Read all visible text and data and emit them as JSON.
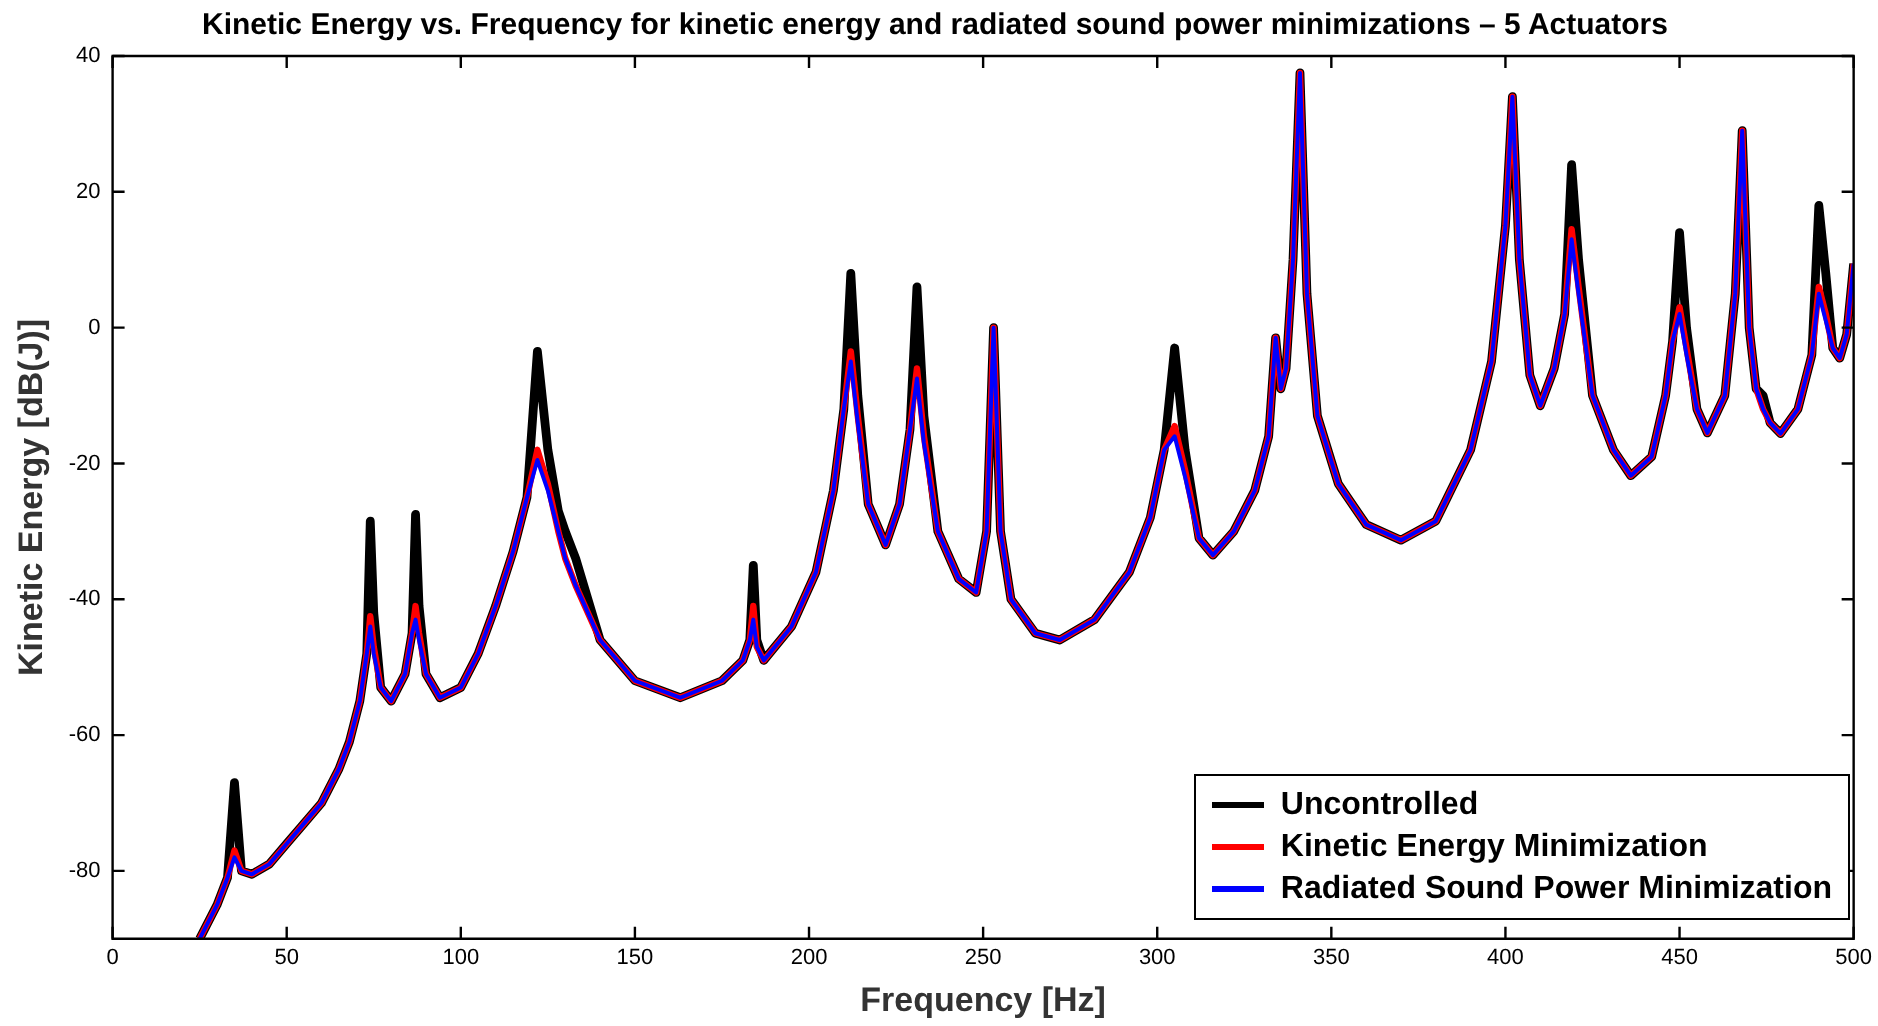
{
  "chart_data": {
    "type": "line",
    "title": "Kinetic Energy vs. Frequency for kinetic energy and radiated sound power minimizations – 5 Actuators",
    "xlabel": "Frequency [Hz]",
    "ylabel": "Kinetic Energy [dB(J)]",
    "x": [
      25,
      30,
      33,
      35,
      37,
      40,
      45,
      50,
      55,
      60,
      65,
      68,
      71,
      73,
      74,
      75,
      77,
      80,
      84,
      86,
      87,
      88,
      90,
      94,
      100,
      105,
      110,
      115,
      119,
      122,
      125,
      128,
      130,
      133,
      140,
      150,
      163,
      175,
      181,
      183,
      184,
      185,
      187,
      195,
      202,
      207,
      210,
      212,
      214,
      217,
      222,
      226,
      229,
      231,
      233,
      237,
      243,
      248,
      251,
      253,
      255,
      258,
      265,
      272,
      282,
      292,
      298,
      302,
      305,
      308,
      312,
      316,
      322,
      328,
      332,
      334,
      335.5,
      337,
      339,
      341,
      343,
      346,
      352,
      360,
      370,
      380,
      390,
      396,
      400,
      402,
      404,
      407,
      410,
      414,
      417,
      419,
      421,
      425,
      431,
      436,
      442,
      446,
      448,
      450,
      452,
      455,
      458,
      463,
      466,
      468,
      470,
      472,
      474,
      476,
      479,
      484,
      488,
      490,
      492,
      494,
      496,
      498,
      500
    ],
    "xlim": [
      0,
      500
    ],
    "xticks": [
      0,
      50,
      100,
      150,
      200,
      250,
      300,
      350,
      400,
      450,
      500
    ],
    "ylim": [
      -90,
      40
    ],
    "yticks": [
      -80,
      -60,
      -40,
      -20,
      0,
      20,
      40
    ],
    "grid": false,
    "legend": "bottom right",
    "marker": "none",
    "line_style": "solid",
    "series": [
      {
        "name": "Uncontrolled",
        "color": "#000000",
        "values": [
          -90,
          -85,
          -81,
          -67,
          -80,
          -80.5,
          -79,
          -76,
          -73,
          -70,
          -65,
          -61,
          -55,
          -48,
          -28.5,
          -42,
          -53,
          -55,
          -51,
          -45,
          -27.5,
          -41,
          -51,
          -54.5,
          -53,
          -48,
          -41,
          -33,
          -25,
          -3.5,
          -18,
          -27,
          -30,
          -34,
          -46,
          -52,
          -54.5,
          -52,
          -49,
          -46,
          -35,
          -46,
          -49,
          -44,
          -36,
          -24,
          -12,
          8,
          -10,
          -26,
          -32,
          -26,
          -15,
          6,
          -13,
          -30,
          -37,
          -39,
          -30,
          0,
          -30,
          -40,
          -45,
          -46,
          -43,
          -36,
          -28,
          -18,
          -3,
          -18,
          -31,
          -33.5,
          -30,
          -24,
          -16,
          -1.5,
          -9,
          -6,
          10,
          37.5,
          5,
          -13,
          -23,
          -29,
          -31.3,
          -28.5,
          -18,
          -5,
          15,
          34,
          10,
          -7,
          -11.5,
          -6,
          2,
          24,
          10,
          -10,
          -18,
          -21.8,
          -19,
          -10,
          -2,
          14,
          0,
          -12,
          -15.5,
          -10,
          5,
          29,
          0,
          -9,
          -10,
          -14,
          -15.6,
          -12,
          -4,
          18,
          8,
          -3,
          -4.5,
          -1,
          9.4
        ]
      },
      {
        "name": "Kinetic Energy Minimization",
        "color": "#ff0000",
        "values": [
          -90,
          -85,
          -81,
          -77,
          -80,
          -80.5,
          -79,
          -76,
          -73,
          -70,
          -65,
          -61,
          -55,
          -48,
          -42.5,
          -47,
          -53,
          -55,
          -51,
          -45,
          -41,
          -45,
          -51,
          -54.5,
          -53,
          -48,
          -41,
          -33,
          -25,
          -18,
          -23,
          -30,
          -34,
          -38,
          -46,
          -52,
          -54.5,
          -52,
          -49,
          -46,
          -41,
          -47,
          -49,
          -44,
          -36,
          -24,
          -12,
          -3.5,
          -13,
          -26,
          -32,
          -26,
          -15,
          -6,
          -16,
          -30,
          -37,
          -39,
          -30,
          0,
          -30,
          -40,
          -45,
          -46,
          -43,
          -36,
          -28,
          -18,
          -14.5,
          -21,
          -31,
          -33.5,
          -30,
          -24,
          -16,
          -1.5,
          -9,
          -6,
          10,
          37.5,
          5,
          -13,
          -23,
          -29,
          -31.3,
          -28.5,
          -18,
          -5,
          15,
          34,
          10,
          -7,
          -11.5,
          -6,
          2,
          14.5,
          6,
          -10,
          -18,
          -21.8,
          -19,
          -10,
          -2,
          3,
          -3,
          -12,
          -15.5,
          -10,
          5,
          29,
          0,
          -9,
          -12,
          -14,
          -15.6,
          -12,
          -4,
          6,
          2,
          -3,
          -4.5,
          -1,
          9.4
        ]
      },
      {
        "name": "Radiated Sound Power Minimization",
        "color": "#0000ff",
        "values": [
          -90,
          -85,
          -81,
          -78,
          -80,
          -80.5,
          -79,
          -76,
          -73,
          -70,
          -65,
          -61,
          -55,
          -48,
          -44,
          -48,
          -53,
          -55,
          -51,
          -45,
          -43,
          -46,
          -51,
          -54.5,
          -53,
          -48,
          -41,
          -33,
          -25,
          -19.5,
          -24,
          -30,
          -34,
          -38,
          -46,
          -52,
          -54.5,
          -52,
          -49,
          -46,
          -43,
          -47,
          -49,
          -44,
          -36,
          -24,
          -12,
          -5,
          -14,
          -26,
          -32,
          -26,
          -15,
          -7.5,
          -17,
          -30,
          -37,
          -39,
          -30,
          0,
          -30,
          -40,
          -45,
          -46,
          -43,
          -36,
          -28,
          -18,
          -16,
          -22,
          -31,
          -33.5,
          -30,
          -24,
          -16,
          -1.5,
          -9,
          -6,
          10,
          37.5,
          5,
          -13,
          -23,
          -29,
          -31.3,
          -28.5,
          -18,
          -5,
          15,
          34,
          10,
          -7,
          -11.5,
          -6,
          2,
          13,
          5,
          -10,
          -18,
          -21.8,
          -19,
          -10,
          -2,
          2,
          -4,
          -12,
          -15.5,
          -10,
          5,
          29,
          0,
          -9,
          -12,
          -14,
          -15.6,
          -12,
          -4,
          5,
          1,
          -3,
          -4.5,
          -1,
          9.4
        ]
      }
    ]
  }
}
